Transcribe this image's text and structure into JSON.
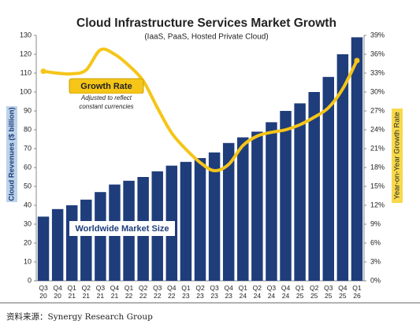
{
  "chart_data": {
    "type": "bar-line",
    "title": "Cloud Infrastructure Services Market Growth",
    "subtitle": "(IaaS, PaaS, Hosted Private Cloud)",
    "y_label": "Cloud Revenues ($ billion)",
    "y2_label": "Year-on-Year Growth Rate",
    "annotations": {
      "growth_rate": "Growth Rate",
      "note": [
        "Adjusted to reflect",
        "constant currencies"
      ],
      "market": "Worldwide Market Size"
    },
    "categories": [
      "Q3\n20",
      "Q4\n20",
      "Q1\n21",
      "Q2\n21",
      "Q3\n21",
      "Q4\n21",
      "Q1\n22",
      "Q2\n22",
      "Q3\n22",
      "Q4\n22",
      "Q1\n23",
      "Q2\n23",
      "Q3\n23",
      "Q4\n23",
      "Q1\n24",
      "Q2\n24",
      "Q3\n24",
      "Q4\n24",
      "Q1\n25",
      "Q2\n25",
      "Q3\n25",
      "Q4\n25",
      "Q1\n26"
    ],
    "series": [
      {
        "name": "Worldwide Market Size",
        "color": "#1f3d7a",
        "values": [
          34,
          38,
          40,
          43,
          47,
          51,
          53,
          55,
          58,
          61,
          63,
          65,
          68,
          73,
          76,
          79,
          84,
          90,
          94,
          100,
          108,
          120,
          129
        ]
      },
      {
        "name": "Growth Rate",
        "color": "#f5c518",
        "axis": "y2",
        "values": [
          33.3,
          33,
          32.9,
          33.5,
          36.7,
          36,
          34.2,
          31.8,
          27.5,
          23.5,
          20.9,
          18.8,
          17.5,
          18.5,
          21.5,
          23,
          23.6,
          24,
          24.8,
          26,
          27.5,
          30.5,
          35
        ]
      }
    ],
    "ylim": [
      0,
      130
    ],
    "yticks": [
      0,
      10,
      20,
      30,
      40,
      50,
      60,
      70,
      80,
      90,
      100,
      110,
      120,
      130
    ],
    "y2lim": [
      0,
      39
    ],
    "y2ticks": [
      {
        "value": 0,
        "label": "0%"
      },
      {
        "value": 3,
        "label": "3%"
      },
      {
        "value": 6,
        "label": "6%"
      },
      {
        "value": 9,
        "label": "9%"
      },
      {
        "value": 12,
        "label": "12%"
      },
      {
        "value": 15,
        "label": "15%"
      },
      {
        "value": 18,
        "label": "18%"
      },
      {
        "value": 21,
        "label": "21%"
      },
      {
        "value": 24,
        "label": "24%"
      },
      {
        "value": 27,
        "label": "27%"
      },
      {
        "value": 30,
        "label": "30%"
      },
      {
        "value": 33,
        "label": "33%"
      },
      {
        "value": 36,
        "label": "36%"
      },
      {
        "value": 39,
        "label": "39%"
      }
    ]
  },
  "source": "资料来源：Synergy Research Group"
}
